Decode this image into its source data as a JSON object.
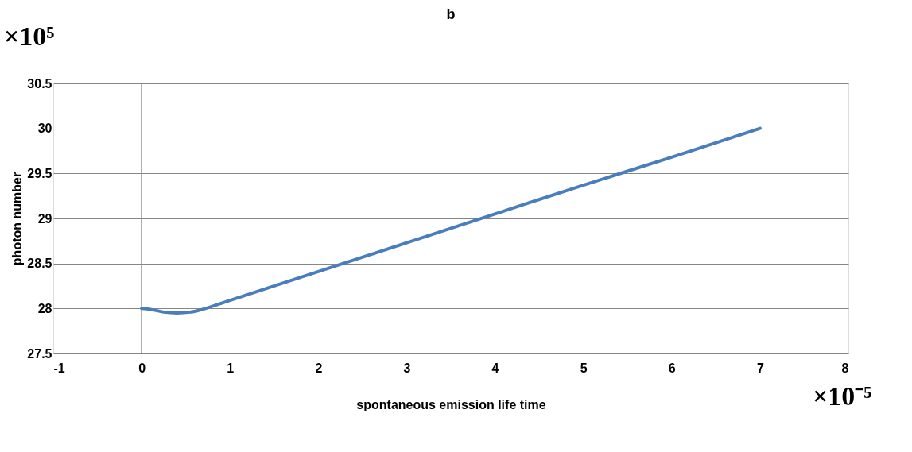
{
  "chart_data": {
    "type": "line",
    "title": "b",
    "xlabel": "spontaneous emission life time",
    "ylabel": "photon number",
    "annotations": [
      "×10⁵",
      "×10⁻⁵"
    ],
    "series": [
      {
        "color": "#4a7ebb",
        "x": [
          0,
          0.1,
          0.25,
          0.4,
          0.55,
          0.65,
          1,
          2,
          3,
          4,
          5,
          6,
          7
        ],
        "values": [
          28.0,
          27.99,
          27.96,
          27.95,
          27.96,
          27.98,
          28.09,
          28.41,
          28.73,
          29.05,
          29.37,
          29.68,
          30.0
        ]
      }
    ],
    "xlim": [
      -1,
      8
    ],
    "xticks": [
      -1,
      0,
      1,
      2,
      3,
      4,
      5,
      6,
      7,
      8
    ],
    "ylim": [
      27.5,
      30.5
    ],
    "yticks": [
      27.5,
      28,
      28.5,
      29,
      29.5,
      30,
      30.5
    ],
    "grid": "y",
    "marker": "none",
    "line_style": "solid",
    "ref_lines": [
      {
        "axis": "x",
        "value": 0,
        "color": "#868686"
      }
    ]
  }
}
